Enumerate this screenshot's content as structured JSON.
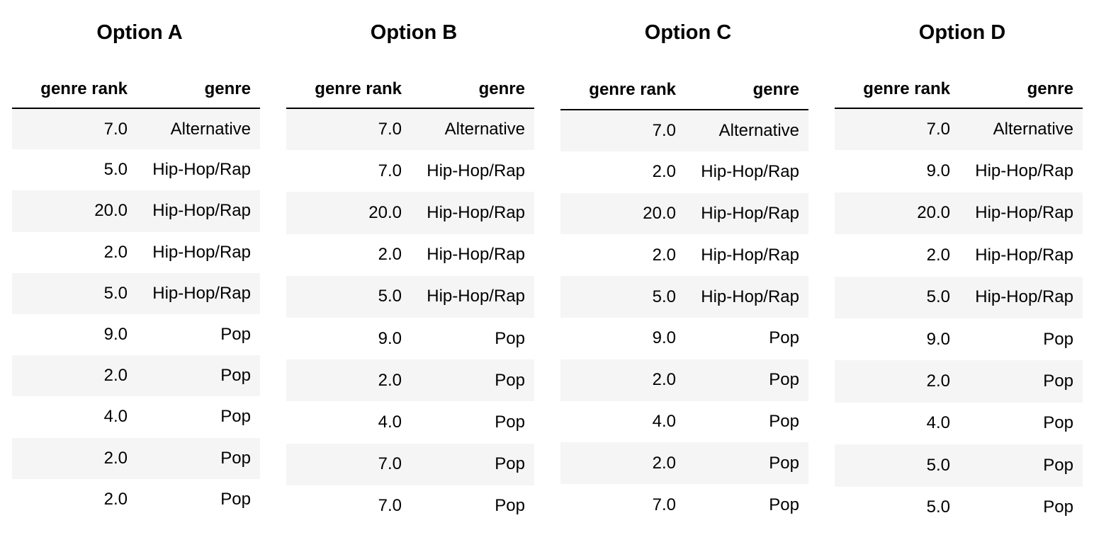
{
  "options": [
    {
      "title": "Option A",
      "columns": [
        "genre rank",
        "genre"
      ],
      "rows": [
        [
          "7.0",
          "Alternative"
        ],
        [
          "5.0",
          "Hip-Hop/Rap"
        ],
        [
          "20.0",
          "Hip-Hop/Rap"
        ],
        [
          "2.0",
          "Hip-Hop/Rap"
        ],
        [
          "5.0",
          "Hip-Hop/Rap"
        ],
        [
          "9.0",
          "Pop"
        ],
        [
          "2.0",
          "Pop"
        ],
        [
          "4.0",
          "Pop"
        ],
        [
          "2.0",
          "Pop"
        ],
        [
          "2.0",
          "Pop"
        ]
      ]
    },
    {
      "title": "Option B",
      "columns": [
        "genre rank",
        "genre"
      ],
      "rows": [
        [
          "7.0",
          "Alternative"
        ],
        [
          "7.0",
          "Hip-Hop/Rap"
        ],
        [
          "20.0",
          "Hip-Hop/Rap"
        ],
        [
          "2.0",
          "Hip-Hop/Rap"
        ],
        [
          "5.0",
          "Hip-Hop/Rap"
        ],
        [
          "9.0",
          "Pop"
        ],
        [
          "2.0",
          "Pop"
        ],
        [
          "4.0",
          "Pop"
        ],
        [
          "7.0",
          "Pop"
        ],
        [
          "7.0",
          "Pop"
        ]
      ]
    },
    {
      "title": "Option C",
      "columns": [
        "genre rank",
        "genre"
      ],
      "rows": [
        [
          "7.0",
          "Alternative"
        ],
        [
          "2.0",
          "Hip-Hop/Rap"
        ],
        [
          "20.0",
          "Hip-Hop/Rap"
        ],
        [
          "2.0",
          "Hip-Hop/Rap"
        ],
        [
          "5.0",
          "Hip-Hop/Rap"
        ],
        [
          "9.0",
          "Pop"
        ],
        [
          "2.0",
          "Pop"
        ],
        [
          "4.0",
          "Pop"
        ],
        [
          "2.0",
          "Pop"
        ],
        [
          "7.0",
          "Pop"
        ]
      ]
    },
    {
      "title": "Option D",
      "columns": [
        "genre rank",
        "genre"
      ],
      "rows": [
        [
          "7.0",
          "Alternative"
        ],
        [
          "9.0",
          "Hip-Hop/Rap"
        ],
        [
          "20.0",
          "Hip-Hop/Rap"
        ],
        [
          "2.0",
          "Hip-Hop/Rap"
        ],
        [
          "5.0",
          "Hip-Hop/Rap"
        ],
        [
          "9.0",
          "Pop"
        ],
        [
          "2.0",
          "Pop"
        ],
        [
          "4.0",
          "Pop"
        ],
        [
          "5.0",
          "Pop"
        ],
        [
          "5.0",
          "Pop"
        ]
      ]
    }
  ]
}
